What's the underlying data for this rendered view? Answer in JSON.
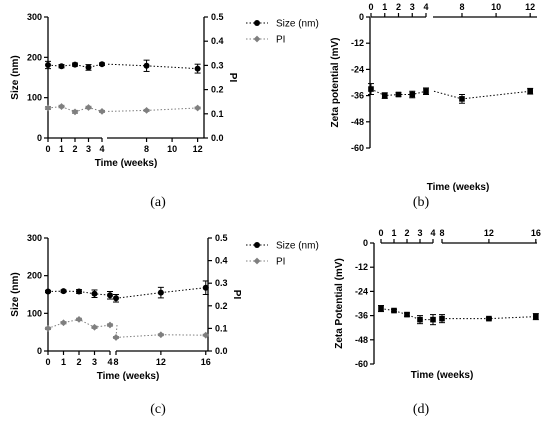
{
  "panel_labels": [
    "(a)",
    "(b)",
    "(c)",
    "(d)"
  ],
  "chart_data": [
    {
      "type": "line",
      "panel": "(a)",
      "xlabel": "Time (weeks)",
      "ylabel": "Size (nm)",
      "y2label": "PI",
      "xbreak": [
        4,
        4.9
      ],
      "xticks": [
        0,
        1,
        2,
        3,
        4,
        8,
        10,
        12
      ],
      "ylim": [
        0,
        300
      ],
      "yticks": [
        0,
        100,
        200,
        300
      ],
      "y2lim": [
        0,
        0.5
      ],
      "y2ticks": [
        0.0,
        0.1,
        0.2,
        0.3,
        0.4,
        0.5
      ],
      "legend_position": "top-right",
      "series": [
        {
          "name": "Size (nm)",
          "axis": "left",
          "marker": "circle",
          "color": "#000000",
          "x": [
            0,
            1,
            2,
            3,
            4,
            8,
            12
          ],
          "y": [
            181,
            178,
            182,
            175,
            183,
            179,
            172
          ],
          "err": [
            9,
            4,
            4,
            7,
            3,
            14,
            11
          ]
        },
        {
          "name": "PI",
          "axis": "right",
          "marker": "diamond",
          "color": "#7f7f7f",
          "x": [
            0,
            1,
            2,
            3,
            4,
            8,
            12
          ],
          "y": [
            0.124,
            0.13,
            0.108,
            0.126,
            0.11,
            0.114,
            0.124
          ],
          "err": [
            0.006,
            0.005,
            0.006,
            0.005,
            0.004,
            0.004,
            0.004
          ]
        }
      ]
    },
    {
      "type": "line",
      "panel": "(b)",
      "xlabel": "Time (weeks)",
      "ylabel": "Zeta potential (mV)",
      "xbreak": [
        4,
        6.3
      ],
      "xticks": [
        0,
        1,
        2,
        3,
        4,
        8,
        10,
        12
      ],
      "x_axis_position": "top",
      "ylim": [
        -60,
        0
      ],
      "yticks": [
        0,
        -12,
        -24,
        -36,
        -48,
        -60
      ],
      "series": [
        {
          "name": "",
          "marker": "square",
          "color": "#000000",
          "x": [
            0,
            1,
            2,
            3,
            4,
            8,
            12
          ],
          "y": [
            -33,
            -36,
            -35.5,
            -35.5,
            -34,
            -37.5,
            -34
          ],
          "err": [
            2.5,
            1.3,
            0.8,
            1.5,
            1.5,
            2,
            1.3
          ]
        }
      ]
    },
    {
      "type": "line",
      "panel": "(c)",
      "xlabel": "Time (weeks)",
      "ylabel": "Size (nm)",
      "y2label": "PI",
      "xbreak": [
        4,
        8
      ],
      "xticks": [
        0,
        1,
        2,
        3,
        4,
        8,
        12,
        16
      ],
      "ylim": [
        0,
        300
      ],
      "yticks": [
        0,
        100,
        200,
        300
      ],
      "y2lim": [
        0,
        0.5
      ],
      "y2ticks": [
        0.0,
        0.1,
        0.2,
        0.3,
        0.4,
        0.5
      ],
      "legend_position": "top-right",
      "series": [
        {
          "name": "Size (nm)",
          "axis": "left",
          "marker": "circle",
          "color": "#000000",
          "x": [
            0,
            1,
            2,
            3,
            4,
            8,
            12,
            16
          ],
          "y": [
            158,
            159,
            158,
            152,
            148,
            140,
            155,
            168
          ],
          "err": [
            3,
            3,
            5,
            10,
            10,
            10,
            14,
            18
          ]
        },
        {
          "name": "PI",
          "axis": "right",
          "marker": "diamond",
          "color": "#7f7f7f",
          "x": [
            0,
            1,
            2,
            3,
            4,
            8,
            12,
            16
          ],
          "y": [
            0.1,
            0.125,
            0.14,
            0.105,
            0.115,
            0.06,
            0.072,
            0.07
          ],
          "err": [
            0.005,
            0.005,
            0.005,
            0.005,
            0.005,
            0.004,
            0.004,
            0.004
          ]
        }
      ]
    },
    {
      "type": "line",
      "panel": "(d)",
      "xlabel": "Time (weeks)",
      "ylabel": "Zeta Potential (mV)",
      "xbreak": [
        4,
        8
      ],
      "xticks": [
        0,
        1,
        2,
        3,
        4,
        8,
        12,
        16
      ],
      "x_axis_position": "top",
      "ylim": [
        -60,
        0
      ],
      "yticks": [
        0,
        -12,
        -24,
        -36,
        -48,
        -60
      ],
      "series": [
        {
          "name": "",
          "marker": "square",
          "color": "#000000",
          "x": [
            0,
            1,
            2,
            3,
            4,
            8,
            12,
            16
          ],
          "y": [
            -32.5,
            -33.5,
            -35.5,
            -38,
            -38,
            -37.5,
            -37.5,
            -36.5
          ],
          "err": [
            1.5,
            0.6,
            0.8,
            2,
            2.5,
            2,
            0.6,
            1.5
          ]
        }
      ]
    }
  ]
}
